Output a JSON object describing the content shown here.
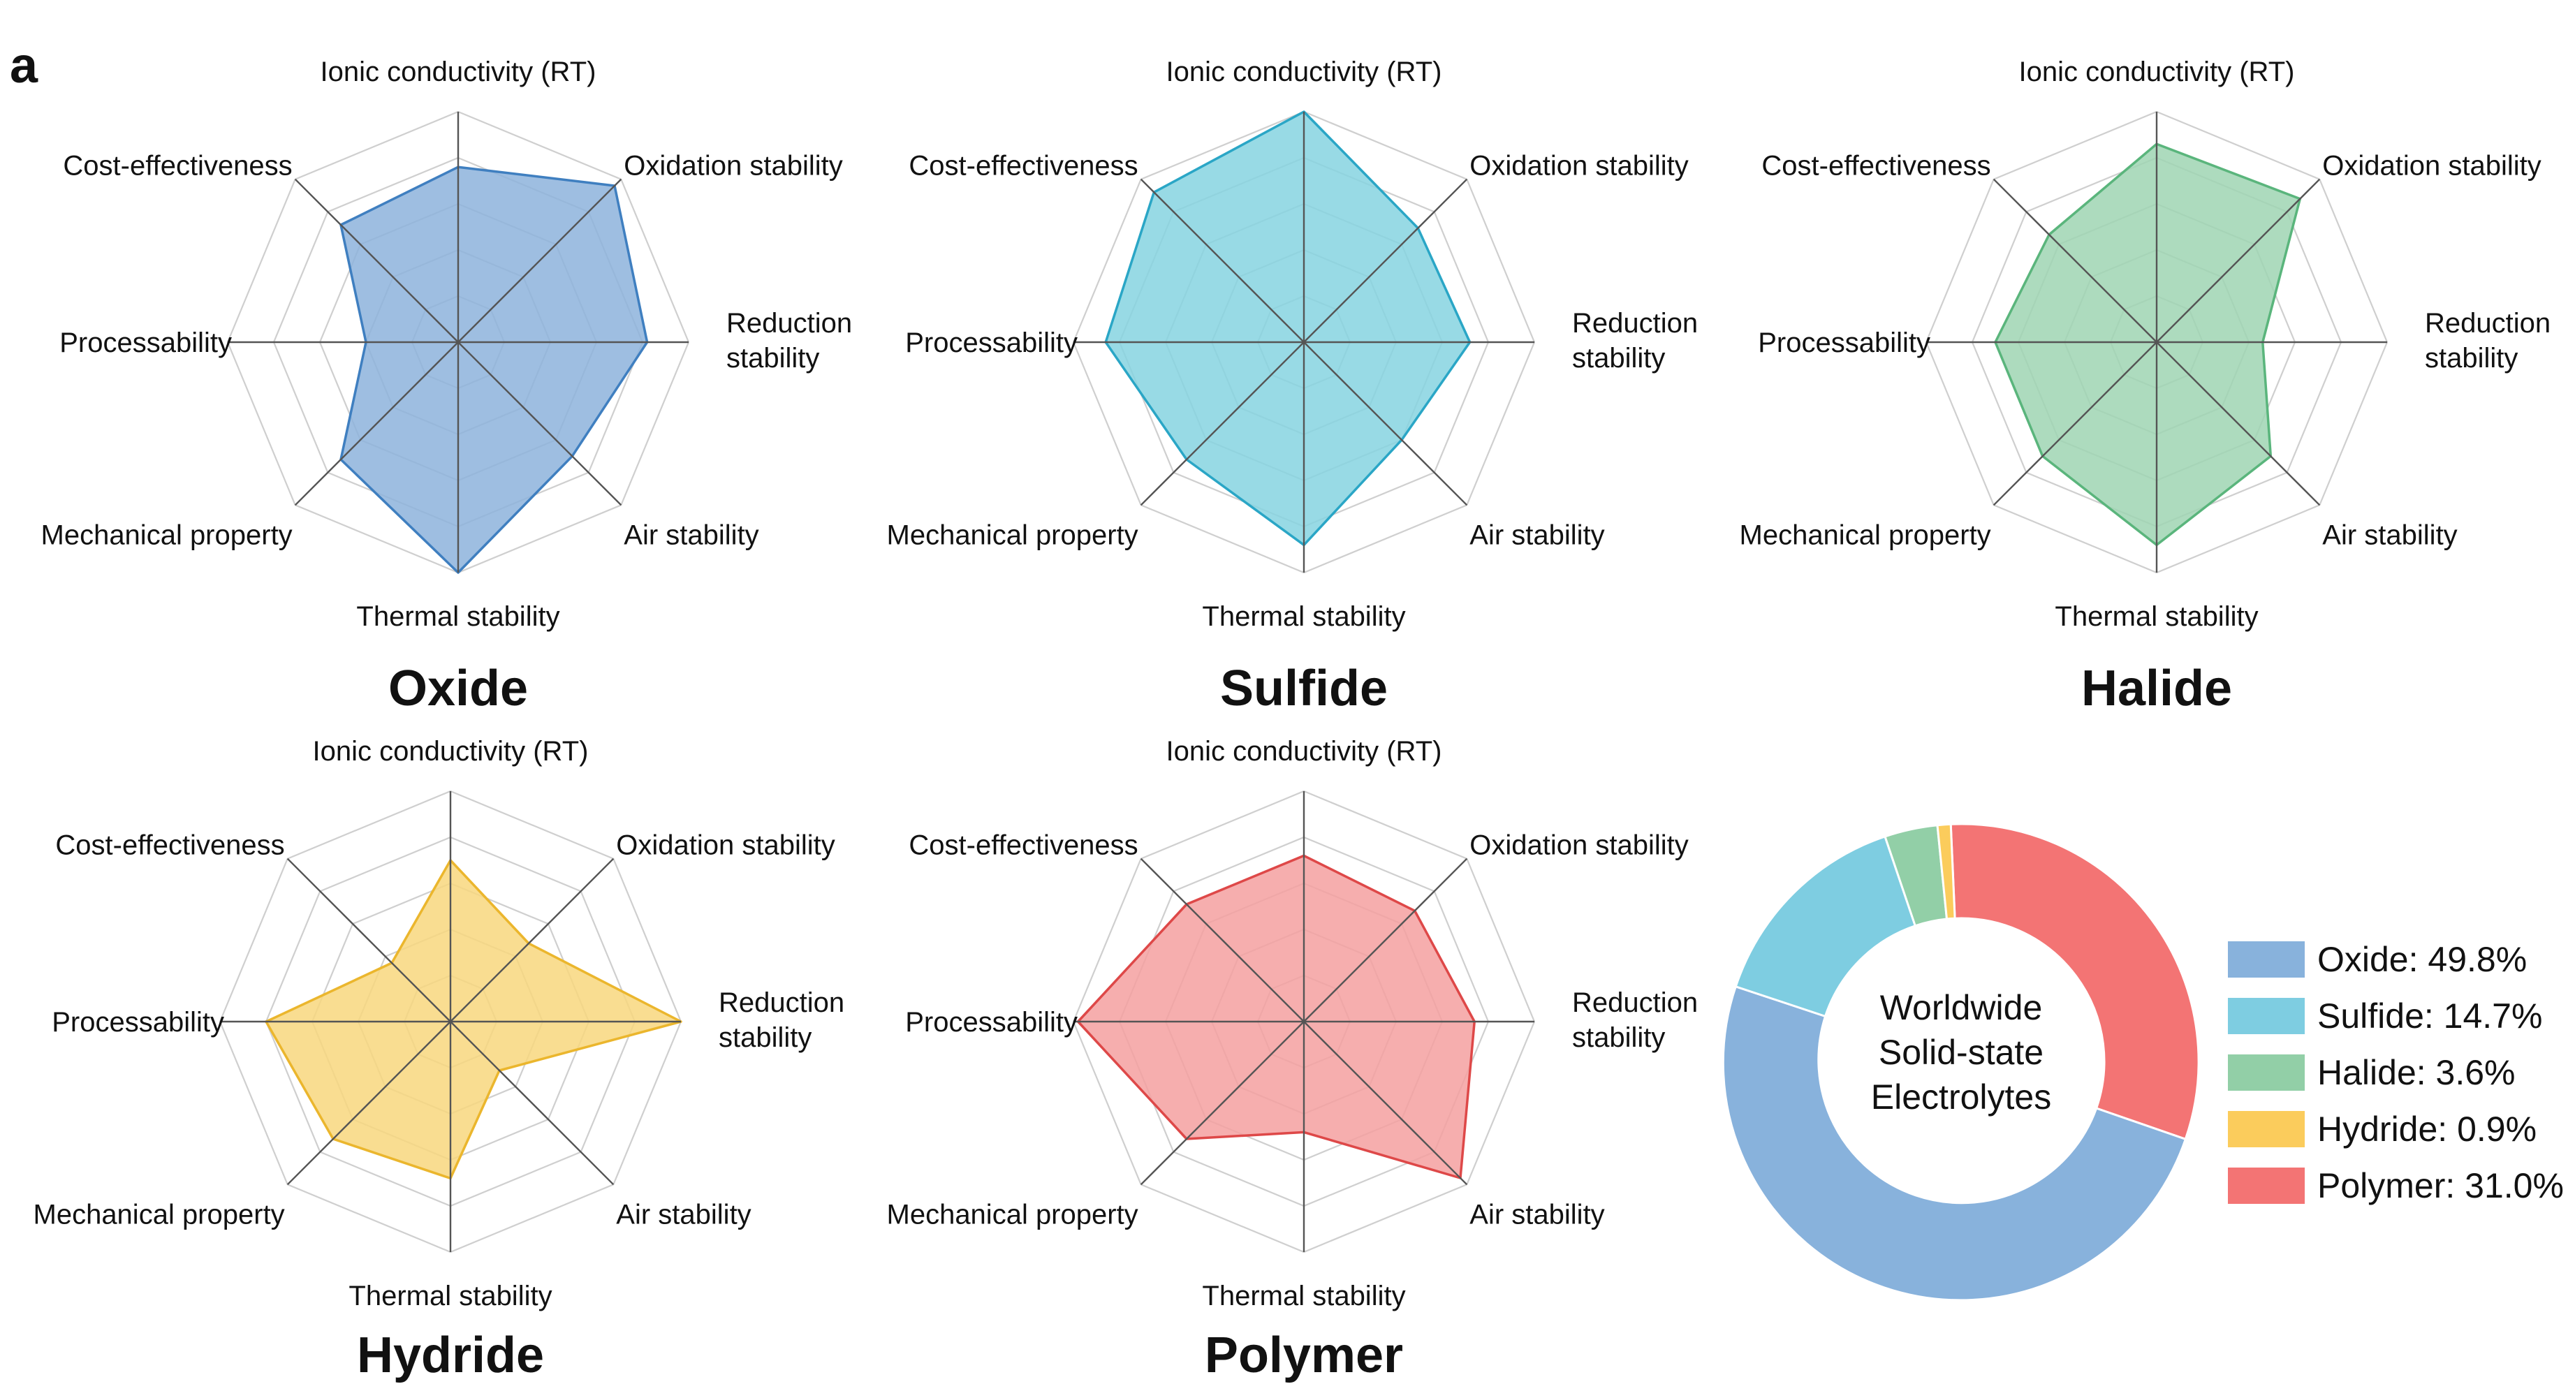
{
  "figure_label": "a",
  "radar_axes": [
    [
      "Ionic conductivity (RT)"
    ],
    [
      "Oxidation stability"
    ],
    [
      "Reduction",
      "stability"
    ],
    [
      "Air stability"
    ],
    [
      "Thermal stability"
    ],
    [
      "Mechanical property"
    ],
    [
      "Processability"
    ],
    [
      "Cost-effectiveness"
    ]
  ],
  "chart_data": [
    {
      "type": "radar",
      "title": "Oxide",
      "color": "#3F7FC0",
      "fill": "#8DB3DC",
      "scale_max": 5,
      "rings": 5,
      "axes": [
        "Ionic conductivity (RT)",
        "Oxidation stability",
        "Reduction stability",
        "Air stability",
        "Thermal stability",
        "Mechanical property",
        "Processability",
        "Cost-effectiveness"
      ],
      "values": [
        3.8,
        4.8,
        4.1,
        3.5,
        5.0,
        3.6,
        2.0,
        3.6
      ]
    },
    {
      "type": "radar",
      "title": "Sulfide",
      "color": "#2AA6C6",
      "fill": "#86D3E1",
      "scale_max": 5,
      "rings": 5,
      "axes": [
        "Ionic conductivity (RT)",
        "Oxidation stability",
        "Reduction stability",
        "Air stability",
        "Thermal stability",
        "Mechanical property",
        "Processability",
        "Cost-effectiveness"
      ],
      "values": [
        5.0,
        3.5,
        3.6,
        3.0,
        4.4,
        3.6,
        4.3,
        4.6
      ]
    },
    {
      "type": "radar",
      "title": "Halide",
      "color": "#5AB57C",
      "fill": "#9FD5B3",
      "scale_max": 5,
      "rings": 5,
      "axes": [
        "Ionic conductivity (RT)",
        "Oxidation stability",
        "Reduction stability",
        "Air stability",
        "Thermal stability",
        "Mechanical property",
        "Processability",
        "Cost-effectiveness"
      ],
      "values": [
        4.3,
        4.4,
        2.3,
        3.5,
        4.4,
        3.5,
        3.5,
        3.3
      ]
    },
    {
      "type": "radar",
      "title": "Hydride",
      "color": "#EBB62D",
      "fill": "#F8D77E",
      "scale_max": 5,
      "rings": 5,
      "axes": [
        "Ionic conductivity (RT)",
        "Oxidation stability",
        "Reduction stability",
        "Air stability",
        "Thermal stability",
        "Mechanical property",
        "Processability",
        "Cost-effectiveness"
      ],
      "values": [
        3.5,
        2.4,
        5.0,
        1.5,
        3.4,
        3.6,
        4.0,
        1.8
      ]
    },
    {
      "type": "radar",
      "title": "Polymer",
      "color": "#DE4848",
      "fill": "#F4A0A0",
      "scale_max": 5,
      "rings": 5,
      "axes": [
        "Ionic conductivity (RT)",
        "Oxidation stability",
        "Reduction stability",
        "Air stability",
        "Thermal stability",
        "Mechanical property",
        "Processability",
        "Cost-effectiveness"
      ],
      "values": [
        3.6,
        3.4,
        3.7,
        4.8,
        2.4,
        3.6,
        4.9,
        3.6
      ]
    },
    {
      "type": "pie",
      "subtype": "donut",
      "center_text": [
        "Worldwide",
        "Solid-state",
        "Electrolytes"
      ],
      "categories": [
        "Oxide",
        "Sulfide",
        "Halide",
        "Hydride",
        "Polymer"
      ],
      "values": [
        49.8,
        14.7,
        3.6,
        0.9,
        31.0
      ],
      "legend": [
        "Oxide: 49.8%",
        "Sulfide: 14.7%",
        "Halide: 3.6%",
        "Hydride: 0.9%",
        "Polymer: 31.0%"
      ],
      "colors": [
        "#88B2DC",
        "#7ECDE1",
        "#92CFA7",
        "#FBCC5C",
        "#F37474"
      ],
      "legend_position": "right"
    }
  ]
}
